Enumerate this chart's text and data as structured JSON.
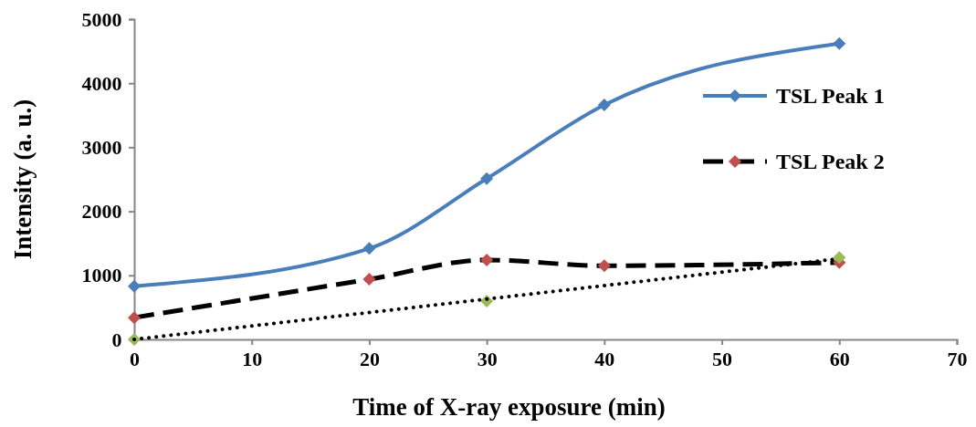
{
  "chart_data": {
    "type": "line",
    "xlabel": "Time of X-ray exposure (min)",
    "ylabel": "Intensity (a. u.)",
    "xlim": [
      0,
      70
    ],
    "xticks": [
      0,
      10,
      20,
      30,
      40,
      50,
      60,
      70
    ],
    "ylim": [
      0,
      5000
    ],
    "yticks": [
      0,
      1000,
      2000,
      3000,
      4000,
      5000
    ],
    "grid": false,
    "legend": "top right",
    "series": [
      {
        "name": "TSL Peak 1",
        "color": "#4a7ebb",
        "x": [
          0,
          20,
          30,
          40,
          60
        ],
        "values": [
          830,
          1420,
          2510,
          3660,
          4620
        ],
        "marker": "diamond",
        "line_style": "solid"
      },
      {
        "name": "TSL Peak 2",
        "color": "#000000",
        "colors": [
          "#c0504d",
          "#c0504d",
          "#c0504d",
          "#c0504d",
          "#c0504d"
        ],
        "x": [
          0,
          20,
          30,
          40,
          60
        ],
        "values": [
          340,
          940,
          1240,
          1150,
          1200
        ],
        "marker": "diamond",
        "line_style": "dashed"
      },
      {
        "type": "scatter",
        "color": "#9bbb59",
        "x": [
          0,
          30,
          60
        ],
        "values": [
          0,
          600,
          1280
        ],
        "marker": "diamond"
      },
      {
        "color": "#000000",
        "x": [
          0,
          60
        ],
        "values": [
          0,
          1260
        ],
        "marker": "none",
        "line_style": "dotted"
      }
    ]
  }
}
